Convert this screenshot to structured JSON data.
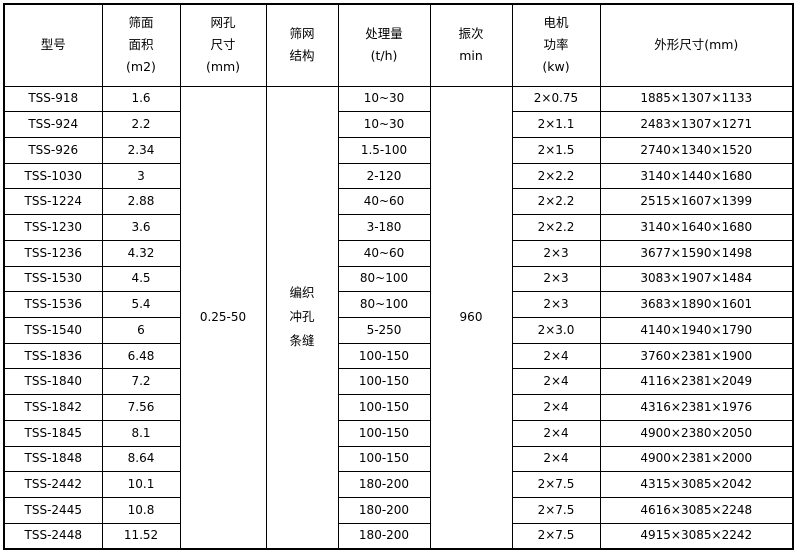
{
  "table": {
    "columns": [
      {
        "key": "model",
        "lines": [
          "型号"
        ]
      },
      {
        "key": "area",
        "lines": [
          "筛面",
          "面积",
          "(m2)"
        ]
      },
      {
        "key": "mesh",
        "lines": [
          "网孔",
          "尺寸",
          "(mm)"
        ]
      },
      {
        "key": "structure",
        "lines": [
          "筛网",
          "结构"
        ]
      },
      {
        "key": "capacity",
        "lines": [
          "处理量",
          "(t/h)"
        ]
      },
      {
        "key": "vibration",
        "lines": [
          "振次",
          "min"
        ]
      },
      {
        "key": "power",
        "lines": [
          "电机",
          "功率",
          "(kw)"
        ]
      },
      {
        "key": "dimensions",
        "lines": [
          "外形尺寸(mm)"
        ]
      }
    ],
    "merged": {
      "mesh_size": "0.25-50",
      "structure_lines": [
        "编织",
        "冲孔",
        "条缝"
      ],
      "vibration": "960"
    },
    "rows": [
      {
        "model": "TSS-918",
        "area": "1.6",
        "capacity": "10~30",
        "power": "2×0.75",
        "dimensions": "1885×1307×1133"
      },
      {
        "model": "TSS-924",
        "area": "2.2",
        "capacity": "10~30",
        "power": "2×1.1",
        "dimensions": "2483×1307×1271"
      },
      {
        "model": "TSS-926",
        "area": "2.34",
        "capacity": "1.5-100",
        "power": "2×1.5",
        "dimensions": "2740×1340×1520"
      },
      {
        "model": "TSS-1030",
        "area": "3",
        "capacity": "2-120",
        "power": "2×2.2",
        "dimensions": "3140×1440×1680"
      },
      {
        "model": "TSS-1224",
        "area": "2.88",
        "capacity": "40~60",
        "power": "2×2.2",
        "dimensions": "2515×1607×1399"
      },
      {
        "model": "TSS-1230",
        "area": "3.6",
        "capacity": "3-180",
        "power": "2×2.2",
        "dimensions": "3140×1640×1680"
      },
      {
        "model": "TSS-1236",
        "area": "4.32",
        "capacity": "40~60",
        "power": "2×3",
        "dimensions": "3677×1590×1498"
      },
      {
        "model": "TSS-1530",
        "area": "4.5",
        "capacity": "80~100",
        "power": "2×3",
        "dimensions": "3083×1907×1484"
      },
      {
        "model": "TSS-1536",
        "area": "5.4",
        "capacity": "80~100",
        "power": "2×3",
        "dimensions": "3683×1890×1601"
      },
      {
        "model": "TSS-1540",
        "area": "6",
        "capacity": "5-250",
        "power": "2×3.0",
        "dimensions": "4140×1940×1790"
      },
      {
        "model": "TSS-1836",
        "area": "6.48",
        "capacity": "100-150",
        "power": "2×4",
        "dimensions": "3760×2381×1900"
      },
      {
        "model": "TSS-1840",
        "area": "7.2",
        "capacity": "100-150",
        "power": "2×4",
        "dimensions": "4116×2381×2049"
      },
      {
        "model": "TSS-1842",
        "area": "7.56",
        "capacity": "100-150",
        "power": "2×4",
        "dimensions": "4316×2381×1976"
      },
      {
        "model": "TSS-1845",
        "area": "8.1",
        "capacity": "100-150",
        "power": "2×4",
        "dimensions": "4900×2380×2050"
      },
      {
        "model": "TSS-1848",
        "area": "8.64",
        "capacity": "100-150",
        "power": "2×4",
        "dimensions": "4900×2381×2000"
      },
      {
        "model": "TSS-2442",
        "area": "10.1",
        "capacity": "180-200",
        "power": "2×7.5",
        "dimensions": "4315×3085×2042"
      },
      {
        "model": "TSS-2445",
        "area": "10.8",
        "capacity": "180-200",
        "power": "2×7.5",
        "dimensions": "4616×3085×2248"
      },
      {
        "model": "TSS-2448",
        "area": "11.52",
        "capacity": "180-200",
        "power": "2×7.5",
        "dimensions": "4915×3085×2242"
      }
    ]
  }
}
